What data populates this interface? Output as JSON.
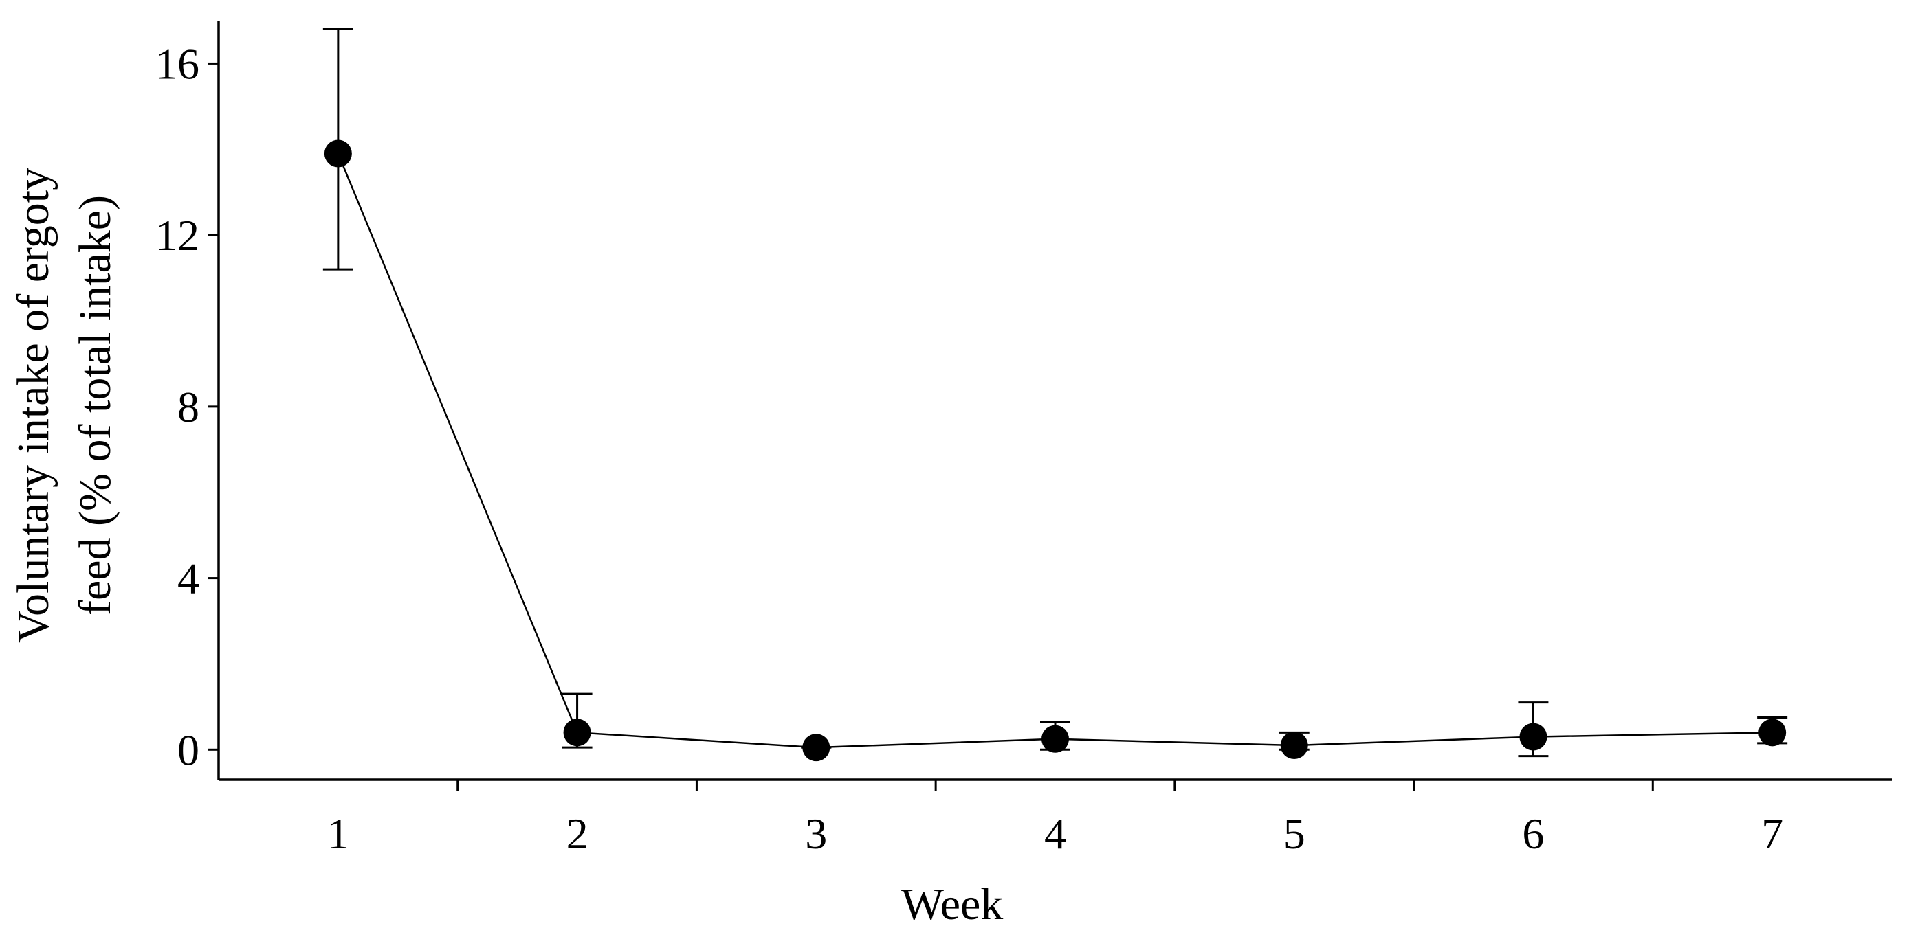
{
  "chart_data": {
    "type": "line",
    "title": "",
    "xlabel": "Week",
    "ylabel_line1": "Voluntary intake of ergoty",
    "ylabel_line2": "feed (% of total intake)",
    "x": [
      1,
      2,
      3,
      4,
      5,
      6,
      7
    ],
    "x_tick_labels": [
      "1",
      "2",
      "3",
      "4",
      "5",
      "6",
      "7"
    ],
    "y_ticks": [
      0,
      4,
      8,
      12,
      16
    ],
    "y_tick_labels": [
      "0",
      "4",
      "8",
      "12",
      "16"
    ],
    "xlim": [
      0.5,
      7.5
    ],
    "ylim": [
      -0.7,
      17.0
    ],
    "grid": false,
    "legend": "none",
    "series": [
      {
        "values": [
          13.9,
          0.4,
          0.05,
          0.25,
          0.1,
          0.3,
          0.4
        ],
        "err_upper": [
          16.8,
          1.3,
          0.05,
          0.65,
          0.4,
          1.1,
          0.75
        ],
        "err_lower": [
          11.2,
          0.05,
          0.05,
          0.0,
          0.0,
          -0.15,
          0.15
        ]
      }
    ],
    "colors": {
      "line": "#000000",
      "marker": "#000000",
      "axis": "#000000"
    }
  }
}
